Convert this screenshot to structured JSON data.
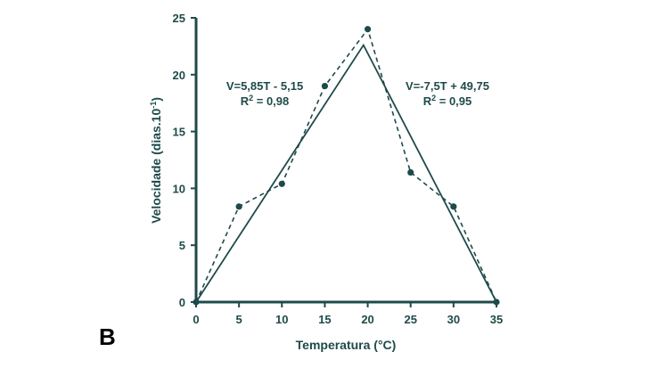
{
  "panel_label": "B",
  "colors": {
    "axis": "#1f4a4a",
    "line": "#1f4a4a",
    "text": "#1f4a4a"
  },
  "chart_data": {
    "type": "line",
    "xlabel": "Temperatura (°C)",
    "ylabel_main": "Velocidade (dias.10",
    "ylabel_sup": "-1",
    "ylabel_close": ")",
    "xlim": [
      0,
      35
    ],
    "ylim": [
      0,
      25
    ],
    "xticks": [
      "0",
      "5",
      "10",
      "15",
      "20",
      "25",
      "30",
      "35"
    ],
    "yticks": [
      "0",
      "5",
      "10",
      "15",
      "20",
      "25"
    ],
    "grid": false,
    "series": [
      {
        "style": "dashed-with-markers",
        "x": [
          0,
          5,
          10,
          15,
          20,
          25,
          30,
          35
        ],
        "y": [
          0,
          8.4,
          10.4,
          19,
          24,
          11.4,
          8.4,
          0
        ]
      },
      {
        "style": "solid",
        "x": [
          0,
          19.5,
          35
        ],
        "y": [
          0,
          22.6,
          0
        ]
      }
    ],
    "annotations": [
      {
        "line1": "V=5,85T - 5,15",
        "r_label": "R",
        "r_sup": "2",
        "r_value": " = 0,98"
      },
      {
        "line1": "V=-7,5T + 49,75",
        "r_label": "R",
        "r_sup": "2",
        "r_value": " = 0,95"
      }
    ]
  }
}
